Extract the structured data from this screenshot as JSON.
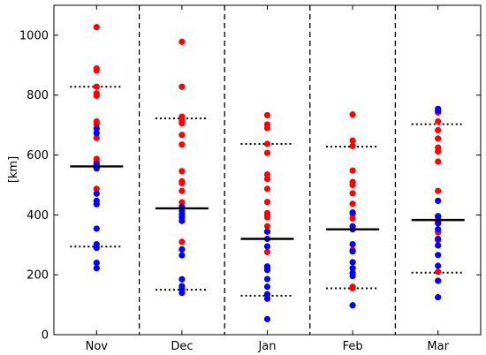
{
  "chart_data": {
    "type": "scatter",
    "title": "",
    "xlabel": "",
    "ylabel": "[km]",
    "categories": [
      "Nov",
      "Dec",
      "Jan",
      "Feb",
      "Mar"
    ],
    "ylim": [
      0,
      1100
    ],
    "yticks": [
      0,
      200,
      400,
      600,
      800,
      1000
    ],
    "grid": false,
    "legend": "none",
    "colors": {
      "red": "#ff0000",
      "blue": "#0000ff",
      "median": "#000000",
      "quantile": "#000000",
      "separator": "#000000"
    },
    "series": [
      {
        "color": "red",
        "values": [
          [
            1027,
            889,
            882,
            828,
            806,
            798,
            712,
            703,
            657,
            587,
            578,
            563,
            487
          ],
          [
            978,
            828,
            728,
            720,
            713,
            706,
            667,
            635,
            546,
            512,
            506,
            480,
            442,
            310
          ],
          [
            733,
            702,
            690,
            637,
            607,
            535,
            520,
            487,
            443,
            406,
            398,
            392,
            362,
            276,
            220
          ],
          [
            735,
            648,
            630,
            548,
            510,
            500,
            472,
            437,
            403,
            388,
            283,
            160,
            155
          ],
          [
            742,
            712,
            683,
            655,
            625,
            612,
            578,
            480,
            392,
            377,
            342,
            316,
            210
          ]
        ]
      },
      {
        "color": "blue",
        "values": [
          [
            688,
            673,
            570,
            555,
            471,
            447,
            436,
            354,
            302,
            290,
            240,
            222
          ],
          [
            427,
            412,
            402,
            392,
            380,
            285,
            265,
            185,
            162,
            152,
            140
          ],
          [
            344,
            320,
            295,
            228,
            216,
            186,
            160,
            135,
            120,
            52
          ],
          [
            408,
            362,
            352,
            302,
            278,
            242,
            222,
            206,
            196,
            98
          ],
          [
            754,
            748,
            447,
            396,
            372,
            352,
            320,
            298,
            266,
            230,
            180,
            125
          ]
        ]
      }
    ],
    "median": [
      562,
      422,
      320,
      352,
      383
    ],
    "upper_quantile": [
      828,
      722,
      637,
      628,
      703
    ],
    "lower_quantile": [
      294,
      150,
      130,
      155,
      207
    ]
  }
}
